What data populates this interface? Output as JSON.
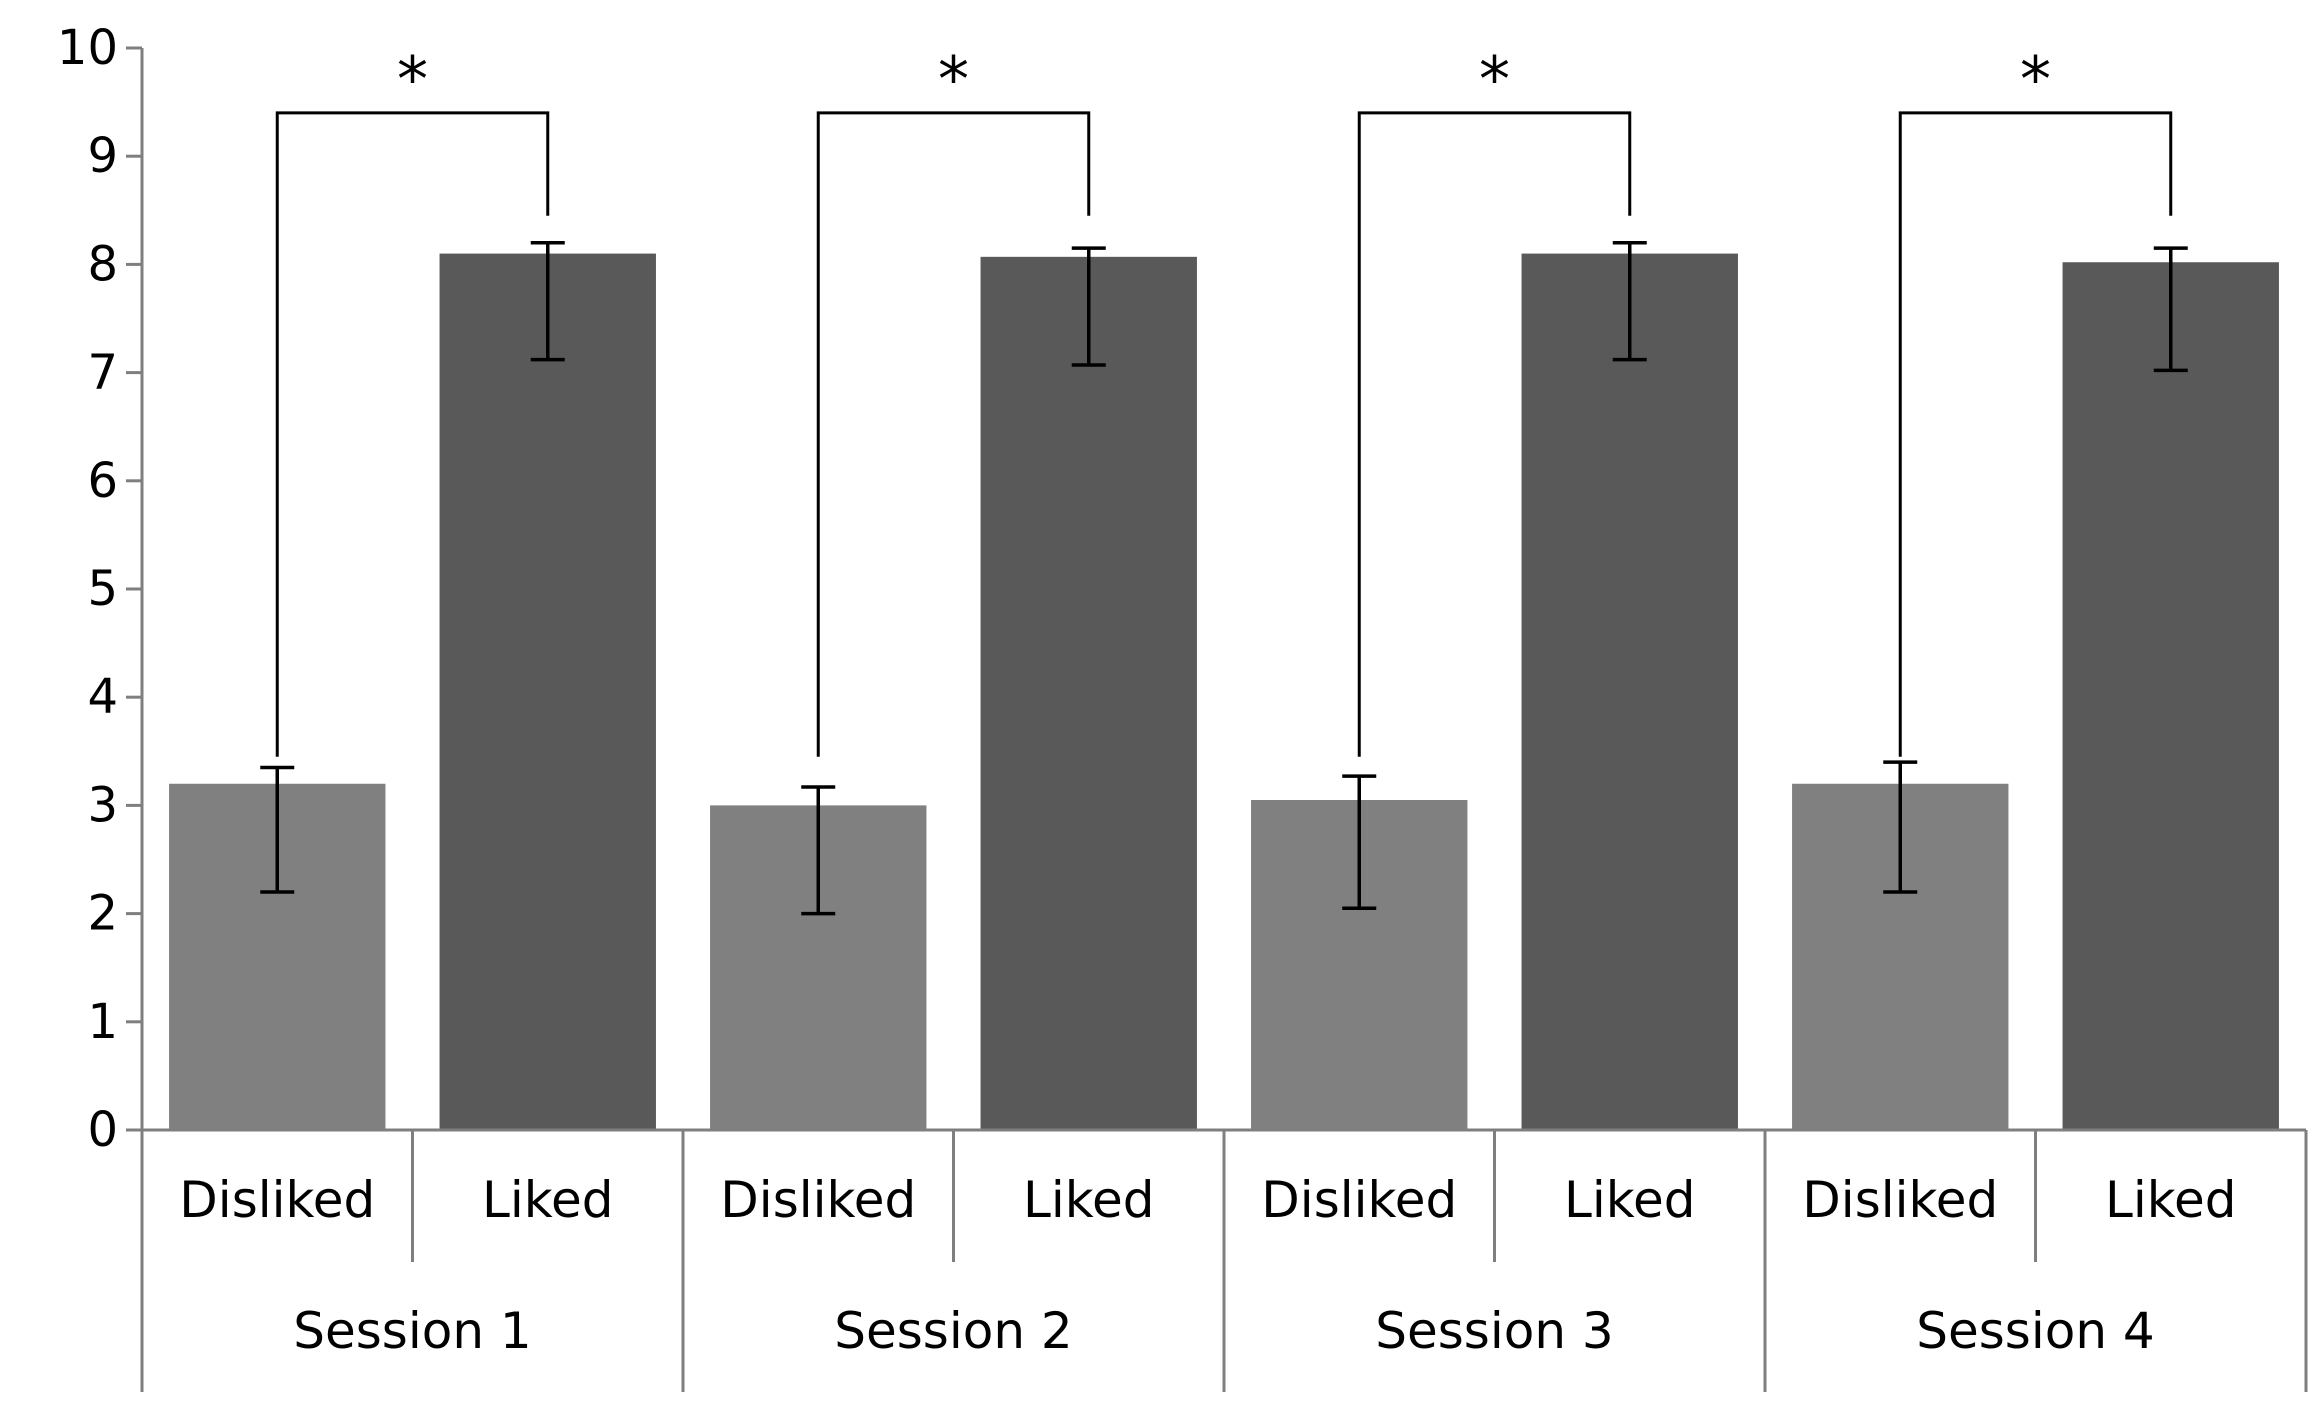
{
  "chart_data": {
    "type": "bar",
    "title": "",
    "xlabel": "",
    "ylabel": "",
    "ylim": [
      0,
      10
    ],
    "yticks": [
      0,
      1,
      2,
      3,
      4,
      5,
      6,
      7,
      8,
      9,
      10
    ],
    "ytick_labels": [
      "0",
      "1",
      "2",
      "3",
      "4",
      "5",
      "6",
      "7",
      "8",
      "9",
      "10"
    ],
    "grid": false,
    "legend": "none",
    "groups": [
      "Session 1",
      "Session 2",
      "Session 3",
      "Session 4"
    ],
    "categories": [
      "Disliked",
      "Liked"
    ],
    "category_colors": [
      "#808080",
      "#595959"
    ],
    "bars": [
      {
        "group": "Session 1",
        "category": "Disliked",
        "value": 3.2,
        "error_low": 2.2,
        "error_high": 3.35
      },
      {
        "group": "Session 1",
        "category": "Liked",
        "value": 8.1,
        "error_low": 7.12,
        "error_high": 8.2
      },
      {
        "group": "Session 2",
        "category": "Disliked",
        "value": 3.0,
        "error_low": 2.0,
        "error_high": 3.17
      },
      {
        "group": "Session 2",
        "category": "Liked",
        "value": 8.07,
        "error_low": 7.07,
        "error_high": 8.15
      },
      {
        "group": "Session 3",
        "category": "Disliked",
        "value": 3.05,
        "error_low": 2.05,
        "error_high": 3.27
      },
      {
        "group": "Session 3",
        "category": "Liked",
        "value": 8.1,
        "error_low": 7.12,
        "error_high": 8.2
      },
      {
        "group": "Session 4",
        "category": "Disliked",
        "value": 3.2,
        "error_low": 2.2,
        "error_high": 3.4
      },
      {
        "group": "Session 4",
        "category": "Liked",
        "value": 8.02,
        "error_low": 7.02,
        "error_high": 8.15
      }
    ],
    "significance": [
      {
        "group": "Session 1",
        "label": "*",
        "bracket_y": 9.4,
        "left_end": 3.45,
        "right_end": 8.45
      },
      {
        "group": "Session 2",
        "label": "*",
        "bracket_y": 9.4,
        "left_end": 3.45,
        "right_end": 8.45
      },
      {
        "group": "Session 3",
        "label": "*",
        "bracket_y": 9.4,
        "left_end": 3.45,
        "right_end": 8.45
      },
      {
        "group": "Session 4",
        "label": "*",
        "bracket_y": 9.4,
        "left_end": 3.45,
        "right_end": 8.45
      }
    ]
  }
}
